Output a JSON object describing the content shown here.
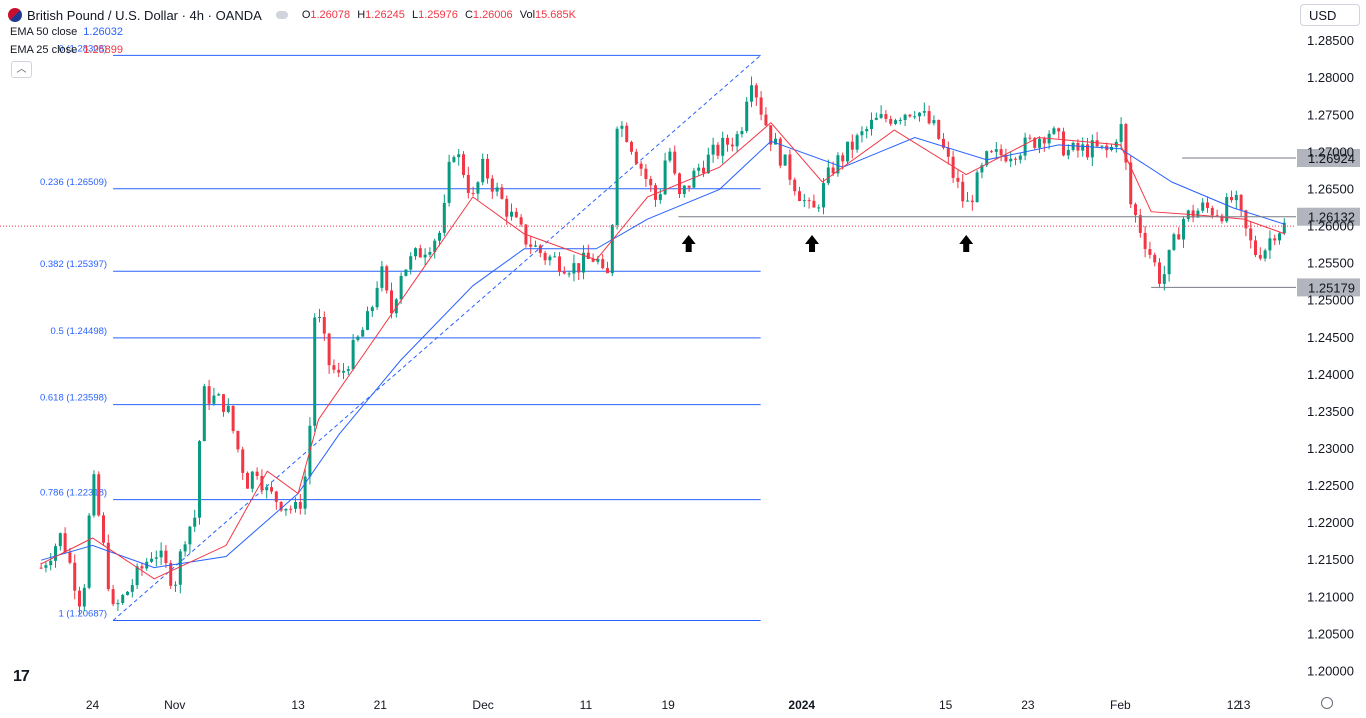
{
  "header": {
    "title": "British Pound / U.S. Dollar · 4h · OANDA",
    "ohlc": [
      {
        "k": "O",
        "v": "1.26078"
      },
      {
        "k": "H",
        "v": "1.26245"
      },
      {
        "k": "L",
        "v": "1.25976"
      },
      {
        "k": "C",
        "v": "1.26006"
      },
      {
        "k": "Vol",
        "v": "15.685K"
      }
    ],
    "currency": "USD",
    "collapse_glyph": "︿"
  },
  "indicators": [
    {
      "label": "EMA 50 close",
      "value": "1.26032",
      "color": "#2962ff"
    },
    {
      "label": "EMA 25 close",
      "value": "1.25899",
      "color": "#f23645"
    }
  ],
  "colors": {
    "up": "#089981",
    "down": "#f23645",
    "ema50": "#2962ff",
    "ema25": "#f23645",
    "fib": "#2962ff",
    "level": "#787b86",
    "tag_bg": "#b2b5be",
    "grid": "#f0f3fa",
    "axis_text": "#131722"
  },
  "chart_data": {
    "type": "candlestick",
    "title": "British Pound / U.S. Dollar · 4h · OANDA",
    "ylim": [
      1.1975,
      1.2865
    ],
    "y_ticks": [
      "1.28500",
      "1.28000",
      "1.27500",
      "1.27000",
      "1.26500",
      "1.26000",
      "1.25500",
      "1.25000",
      "1.24500",
      "1.24000",
      "1.23500",
      "1.23000",
      "1.22500",
      "1.22000",
      "1.21500",
      "1.21000",
      "1.20500",
      "1.20000"
    ],
    "x_labels": [
      {
        "label": "24",
        "date": "2023-10-24"
      },
      {
        "label": "Nov",
        "date": "2023-11-01"
      },
      {
        "label": "13",
        "date": "2023-11-13"
      },
      {
        "label": "21",
        "date": "2023-11-21"
      },
      {
        "label": "Dec",
        "date": "2023-12-01"
      },
      {
        "label": "11",
        "date": "2023-12-11"
      },
      {
        "label": "19",
        "date": "2023-12-19"
      },
      {
        "label": "2024",
        "date": "2024-01-01",
        "bold": true
      },
      {
        "label": "15",
        "date": "2024-01-15"
      },
      {
        "label": "23",
        "date": "2024-01-23"
      },
      {
        "label": "Feb",
        "date": "2024-02-01"
      },
      {
        "label": "12",
        "date": "2024-02-12"
      },
      {
        "label": "13",
        "date": "2024-02-13"
      }
    ],
    "close_path": [
      [
        "2023-10-19",
        1.214
      ],
      [
        "2023-10-21",
        1.2185
      ],
      [
        "2023-10-23",
        1.2085
      ],
      [
        "2023-10-24",
        1.2265
      ],
      [
        "2023-10-26",
        1.208
      ],
      [
        "2023-10-27",
        1.21
      ],
      [
        "2023-10-30",
        1.2165
      ],
      [
        "2023-11-01",
        1.212
      ],
      [
        "2023-11-02",
        1.2185
      ],
      [
        "2023-11-03",
        1.221
      ],
      [
        "2023-11-03T16:00",
        1.2375
      ],
      [
        "2023-11-06",
        1.236
      ],
      [
        "2023-11-08",
        1.2255
      ],
      [
        "2023-11-09",
        1.2275
      ],
      [
        "2023-11-10",
        1.224
      ],
      [
        "2023-11-13",
        1.2215
      ],
      [
        "2023-11-14",
        1.2285
      ],
      [
        "2023-11-14T16:00",
        1.2495
      ],
      [
        "2023-11-16",
        1.2415
      ],
      [
        "2023-11-17",
        1.2395
      ],
      [
        "2023-11-20",
        1.248
      ],
      [
        "2023-11-21",
        1.2545
      ],
      [
        "2023-11-22",
        1.248
      ],
      [
        "2023-11-23",
        1.254
      ],
      [
        "2023-11-27",
        1.2595
      ],
      [
        "2023-11-28",
        1.271
      ],
      [
        "2023-11-29",
        1.268
      ],
      [
        "2023-11-30",
        1.2635
      ],
      [
        "2023-12-01",
        1.268
      ],
      [
        "2023-12-03",
        1.263
      ],
      [
        "2023-12-05",
        1.2585
      ],
      [
        "2023-12-07",
        1.256
      ],
      [
        "2023-12-08",
        1.2555
      ],
      [
        "2023-12-10",
        1.2545
      ],
      [
        "2023-12-12",
        1.256
      ],
      [
        "2023-12-13",
        1.2515
      ],
      [
        "2023-12-13T16:00",
        1.2625
      ],
      [
        "2023-12-14",
        1.2745
      ],
      [
        "2023-12-15",
        1.2725
      ],
      [
        "2023-12-17",
        1.266
      ],
      [
        "2023-12-18",
        1.263
      ],
      [
        "2023-12-19",
        1.2715
      ],
      [
        "2023-12-20",
        1.2635
      ],
      [
        "2023-12-22",
        1.268
      ],
      [
        "2023-12-24",
        1.2705
      ],
      [
        "2023-12-26",
        1.2725
      ],
      [
        "2023-12-27",
        1.281
      ],
      [
        "2023-12-28",
        1.276
      ],
      [
        "2023-12-29",
        1.272
      ],
      [
        "2024-01-01",
        1.264
      ],
      [
        "2024-01-02",
        1.2615
      ],
      [
        "2024-01-04",
        1.268
      ],
      [
        "2024-01-06",
        1.271
      ],
      [
        "2024-01-08",
        1.274
      ],
      [
        "2024-01-10",
        1.275
      ],
      [
        "2024-01-12",
        1.276
      ],
      [
        "2024-01-14",
        1.273
      ],
      [
        "2024-01-16",
        1.266
      ],
      [
        "2024-01-17",
        1.2625
      ],
      [
        "2024-01-19",
        1.269
      ],
      [
        "2024-01-21",
        1.27
      ],
      [
        "2024-01-23",
        1.271
      ],
      [
        "2024-01-25",
        1.273
      ],
      [
        "2024-01-27",
        1.27
      ],
      [
        "2024-01-29",
        1.2705
      ],
      [
        "2024-01-31",
        1.27
      ],
      [
        "2024-02-01",
        1.274
      ],
      [
        "2024-02-02",
        1.263
      ],
      [
        "2024-02-04",
        1.256
      ],
      [
        "2024-02-05",
        1.2525
      ],
      [
        "2024-02-07",
        1.261
      ],
      [
        "2024-02-09",
        1.2625
      ],
      [
        "2024-02-11",
        1.262
      ],
      [
        "2024-02-12",
        1.264
      ],
      [
        "2024-02-13",
        1.26
      ],
      [
        "2024-02-14",
        1.2565
      ],
      [
        "2024-02-15",
        1.257
      ],
      [
        "2024-02-16",
        1.2595
      ],
      [
        "2024-02-17",
        1.2601
      ]
    ],
    "ema50": [
      [
        "2023-10-19",
        1.215
      ],
      [
        "2023-10-24",
        1.217
      ],
      [
        "2023-10-30",
        1.214
      ],
      [
        "2023-11-06",
        1.2155
      ],
      [
        "2023-11-13",
        1.224
      ],
      [
        "2023-11-17",
        1.232
      ],
      [
        "2023-11-23",
        1.242
      ],
      [
        "2023-11-30",
        1.252
      ],
      [
        "2023-12-05",
        1.257
      ],
      [
        "2023-12-12",
        1.257
      ],
      [
        "2023-12-17",
        1.261
      ],
      [
        "2023-12-24",
        1.265
      ],
      [
        "2023-12-29",
        1.2715
      ],
      [
        "2024-01-05",
        1.268
      ],
      [
        "2024-01-12",
        1.272
      ],
      [
        "2024-01-19",
        1.269
      ],
      [
        "2024-01-26",
        1.271
      ],
      [
        "2024-02-01",
        1.2705
      ],
      [
        "2024-02-06",
        1.266
      ],
      [
        "2024-02-12",
        1.2625
      ],
      [
        "2024-02-17",
        1.2603
      ]
    ],
    "ema25": [
      [
        "2023-10-19",
        1.2145
      ],
      [
        "2023-10-24",
        1.218
      ],
      [
        "2023-10-30",
        1.2125
      ],
      [
        "2023-11-06",
        1.217
      ],
      [
        "2023-11-10",
        1.227
      ],
      [
        "2023-11-13",
        1.224
      ],
      [
        "2023-11-15",
        1.234
      ],
      [
        "2023-11-19",
        1.242
      ],
      [
        "2023-11-26",
        1.256
      ],
      [
        "2023-11-30",
        1.264
      ],
      [
        "2023-12-05",
        1.259
      ],
      [
        "2023-12-12",
        1.2555
      ],
      [
        "2023-12-17",
        1.264
      ],
      [
        "2023-12-24",
        1.268
      ],
      [
        "2023-12-29",
        1.274
      ],
      [
        "2024-01-03",
        1.266
      ],
      [
        "2024-01-10",
        1.273
      ],
      [
        "2024-01-17",
        1.267
      ],
      [
        "2024-01-24",
        1.272
      ],
      [
        "2024-02-01",
        1.271
      ],
      [
        "2024-02-04",
        1.262
      ],
      [
        "2024-02-09",
        1.2615
      ],
      [
        "2024-02-13",
        1.261
      ],
      [
        "2024-02-17",
        1.259
      ]
    ],
    "fib": {
      "start": "2023-10-26",
      "end": "2023-12-28",
      "levels": [
        {
          "label": "0 (1.28308)",
          "price": 1.28308
        },
        {
          "label": "0.236 (1.26509)",
          "price": 1.26509
        },
        {
          "label": "0.382 (1.25397)",
          "price": 1.25397
        },
        {
          "label": "0.5 (1.24498)",
          "price": 1.24498
        },
        {
          "label": "0.618 (1.23598)",
          "price": 1.23598
        },
        {
          "label": "0.786 (1.22318)",
          "price": 1.22318
        },
        {
          "label": "1 (1.20687)",
          "price": 1.20687
        }
      ]
    },
    "levels": [
      {
        "price": 1.26924,
        "label": "1.26924",
        "from": "2024-02-07"
      },
      {
        "price": 1.26132,
        "label": "1.26132",
        "from": "2023-12-20"
      },
      {
        "price": 1.25179,
        "label": "1.25179",
        "from": "2024-02-04"
      }
    ],
    "current_price": 1.26006,
    "arrows": [
      "2023-12-21",
      "2024-01-02",
      "2024-01-17"
    ]
  }
}
